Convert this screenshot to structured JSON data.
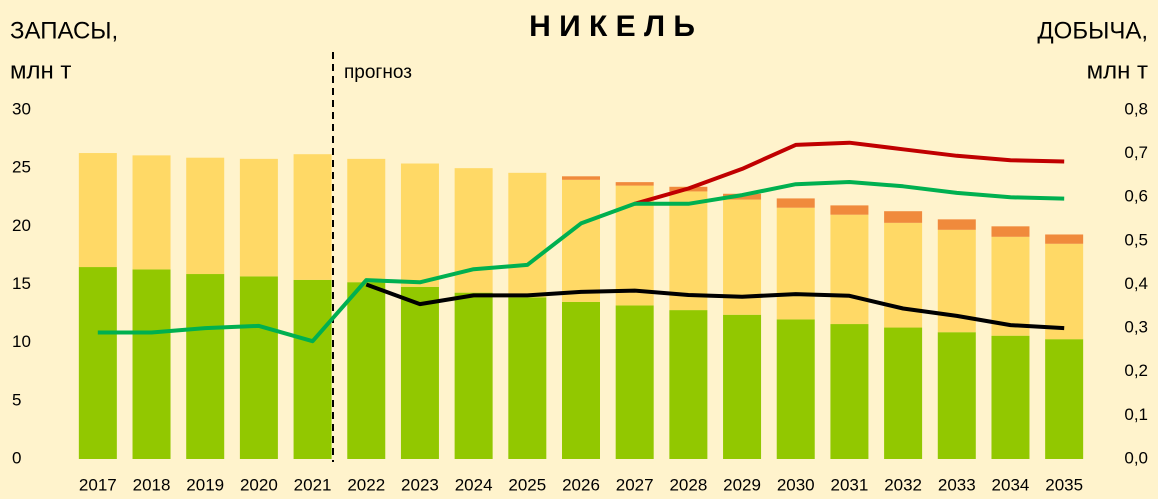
{
  "chart_data": {
    "type": "bar_line",
    "title": "Н И К Е Л Ь",
    "y_label": [
      "ЗАПАСЫ,",
      "млн т"
    ],
    "y2_label": [
      "ДОБЫЧА,",
      "млн т"
    ],
    "annotation": "прогноз",
    "categories": [
      "2017",
      "2018",
      "2019",
      "2020",
      "2021",
      "2022",
      "2023",
      "2024",
      "2025",
      "2026",
      "2027",
      "2028",
      "2029",
      "2030",
      "2031",
      "2032",
      "2033",
      "2034",
      "2035"
    ],
    "bar_series": [
      {
        "color": "#92c800",
        "values": [
          16.5,
          16.3,
          15.9,
          15.7,
          15.4,
          15.2,
          14.8,
          14.3,
          13.9,
          13.5,
          13.2,
          12.8,
          12.4,
          12.0,
          11.6,
          11.3,
          10.9,
          10.6,
          10.3
        ]
      },
      {
        "color": "#ffd966",
        "values": [
          9.8,
          9.8,
          10.0,
          10.1,
          10.8,
          10.6,
          10.6,
          10.7,
          10.7,
          10.5,
          10.3,
          10.2,
          9.9,
          9.6,
          9.4,
          9.0,
          8.8,
          8.5,
          8.2
        ]
      },
      {
        "color": "#f08a3c",
        "values": [
          null,
          null,
          null,
          null,
          null,
          null,
          null,
          null,
          null,
          0.3,
          0.3,
          0.4,
          0.5,
          0.8,
          0.8,
          1.0,
          0.9,
          0.9,
          0.8
        ]
      }
    ],
    "line_series": [
      {
        "color": "#c00000",
        "axis": "y2",
        "values": [
          null,
          null,
          null,
          null,
          null,
          null,
          null,
          null,
          null,
          null,
          0.585,
          0.62,
          0.665,
          0.72,
          0.725,
          0.71,
          0.695,
          0.685,
          0.682
        ]
      },
      {
        "color": "#00b050",
        "axis": "y2",
        "values": [
          0.29,
          0.29,
          0.3,
          0.305,
          0.27,
          0.41,
          0.405,
          0.435,
          0.445,
          0.54,
          0.585,
          0.585,
          0.605,
          0.63,
          0.635,
          0.625,
          0.61,
          0.6,
          0.597
        ]
      },
      {
        "color": "#000000",
        "axis": "y2",
        "values": [
          null,
          null,
          null,
          null,
          null,
          0.4,
          0.355,
          0.375,
          0.375,
          0.383,
          0.386,
          0.376,
          0.372,
          0.378,
          0.374,
          0.345,
          0.328,
          0.307,
          0.3
        ]
      }
    ],
    "ylim": [
      0,
      30
    ],
    "yticks": [
      0,
      5,
      10,
      15,
      20,
      25,
      30
    ],
    "y2lim": [
      0,
      0.8
    ],
    "y2ticks": [
      {
        "value": 0,
        "label": "0,0"
      },
      {
        "value": 0.1,
        "label": "0,1"
      },
      {
        "value": 0.2,
        "label": "0,2"
      },
      {
        "value": 0.3,
        "label": "0,3"
      },
      {
        "value": 0.4,
        "label": "0,4"
      },
      {
        "value": 0.5,
        "label": "0,5"
      },
      {
        "value": 0.6,
        "label": "0,6"
      },
      {
        "value": 0.7,
        "label": "0,7"
      },
      {
        "value": 0.8,
        "label": "0,8"
      }
    ]
  }
}
